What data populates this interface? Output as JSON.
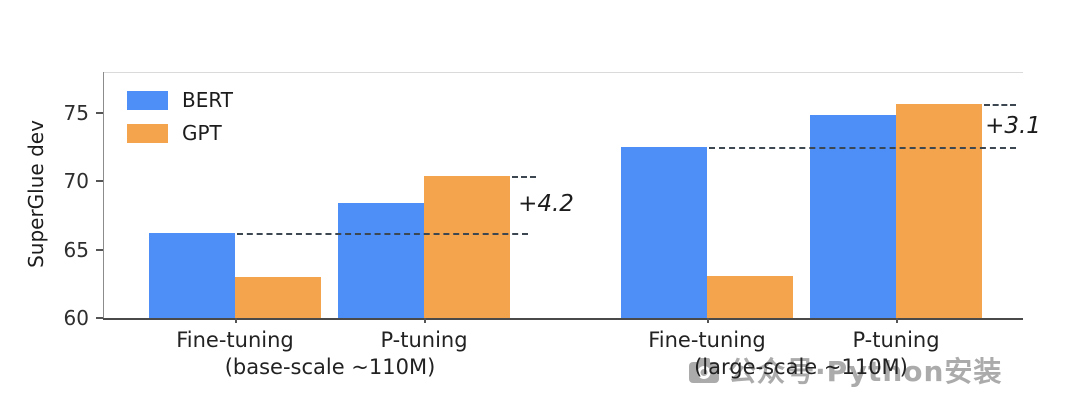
{
  "figure": {
    "background": "#ffffff"
  },
  "chart_data": {
    "type": "bar",
    "title": "",
    "xlabel": "",
    "ylabel": "SuperGlue dev",
    "ylim": [
      60,
      78
    ],
    "yticks": [
      60,
      65,
      70,
      75
    ],
    "grid": false,
    "legend": {
      "position": "upper left",
      "items": [
        "BERT",
        "GPT"
      ]
    },
    "categories": [
      "Fine-tuning",
      "P-tuning",
      "Fine-tuning",
      "P-tuning"
    ],
    "category_sublabels": [
      "(base-scale ~110M)",
      "(large-scale ~110M)"
    ],
    "series": [
      {
        "name": "BERT",
        "color": "#4e8ef7",
        "values": [
          66.2,
          68.4,
          72.5,
          74.8
        ]
      },
      {
        "name": "GPT",
        "color": "#f4a44c",
        "values": [
          63.0,
          70.4,
          63.1,
          75.6
        ]
      }
    ],
    "annotations": [
      {
        "text": "+4.2",
        "pair": 0,
        "baseline_value": 66.2,
        "top_value": 70.4
      },
      {
        "text": "+3.1",
        "pair": 1,
        "baseline_value": 72.5,
        "top_value": 75.6
      }
    ]
  },
  "watermark": {
    "icon": "camera-icon",
    "text": "公众号·Python安装"
  }
}
